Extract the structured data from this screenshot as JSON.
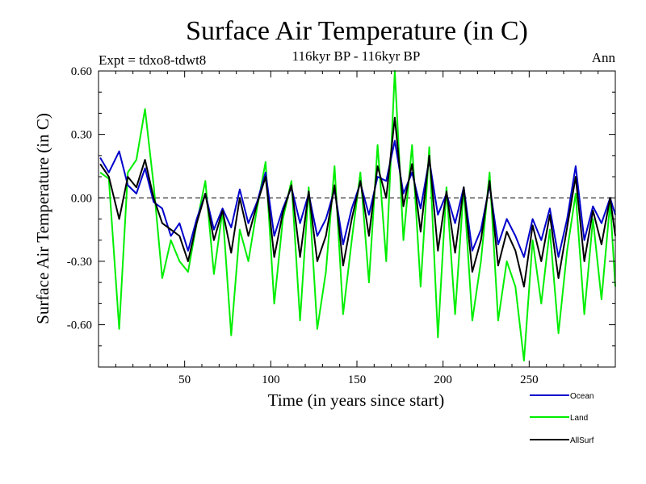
{
  "chart_data": {
    "type": "line",
    "title": "Surface Air Temperature (in C)",
    "subtitle": "116kyr BP - 116kyr BP",
    "experiment": "Expt = tdxo8-tdwt8",
    "season": "Ann",
    "xlabel": "Time (in years since start)",
    "ylabel": "Surface Air Temperature (in C)",
    "xlim": [
      0,
      300
    ],
    "ylim": [
      -0.8,
      0.6
    ],
    "x_ticks": [
      50,
      100,
      150,
      200,
      250
    ],
    "x_tick_labels": [
      "50",
      "100",
      "150",
      "200",
      "250"
    ],
    "y_ticks": [
      0.6,
      0.3,
      0.0,
      -0.3,
      -0.6
    ],
    "y_tick_labels": [
      "0.60",
      "0.30",
      "0.00",
      "-0.30",
      "-0.60"
    ],
    "zero_line": true,
    "x": [
      1,
      6,
      12,
      17,
      22,
      27,
      32,
      37,
      42,
      47,
      52,
      57,
      62,
      67,
      72,
      77,
      82,
      87,
      92,
      97,
      102,
      107,
      112,
      117,
      122,
      127,
      132,
      137,
      142,
      147,
      152,
      157,
      162,
      167,
      172,
      177,
      182,
      187,
      192,
      197,
      202,
      207,
      212,
      217,
      222,
      227,
      232,
      237,
      242,
      247,
      252,
      257,
      262,
      267,
      272,
      277,
      282,
      287,
      292,
      297,
      300
    ],
    "series": [
      {
        "name": "Ocean",
        "color": "#0000cc",
        "values": [
          0.19,
          0.12,
          0.22,
          0.06,
          0.02,
          0.14,
          -0.02,
          -0.05,
          -0.18,
          -0.12,
          -0.25,
          -0.1,
          0.02,
          -0.15,
          -0.05,
          -0.14,
          0.04,
          -0.12,
          -0.02,
          0.12,
          -0.18,
          -0.05,
          0.05,
          -0.12,
          0.02,
          -0.18,
          -0.1,
          0.04,
          -0.22,
          -0.05,
          0.07,
          -0.08,
          0.1,
          0.08,
          0.27,
          0.02,
          0.12,
          -0.05,
          0.18,
          -0.08,
          0.02,
          -0.12,
          0.05,
          -0.25,
          -0.15,
          0.06,
          -0.22,
          -0.1,
          -0.18,
          -0.28,
          -0.1,
          -0.2,
          -0.05,
          -0.28,
          -0.1,
          0.15,
          -0.2,
          -0.04,
          -0.12,
          0.0,
          -0.08
        ]
      },
      {
        "name": "Land",
        "color": "#00ee00",
        "values": [
          0.12,
          0.09,
          -0.62,
          0.12,
          0.18,
          0.42,
          0.06,
          -0.38,
          -0.2,
          -0.3,
          -0.35,
          -0.12,
          0.08,
          -0.36,
          -0.06,
          -0.65,
          -0.15,
          -0.3,
          -0.05,
          0.17,
          -0.5,
          -0.1,
          0.08,
          -0.58,
          0.05,
          -0.62,
          -0.35,
          0.15,
          -0.55,
          -0.2,
          0.12,
          -0.4,
          0.25,
          -0.3,
          0.6,
          -0.2,
          0.25,
          -0.42,
          0.24,
          -0.66,
          0.05,
          -0.55,
          0.05,
          -0.58,
          -0.3,
          0.12,
          -0.58,
          -0.3,
          -0.42,
          -0.77,
          -0.2,
          -0.5,
          -0.15,
          -0.64,
          -0.25,
          0.02,
          -0.55,
          -0.1,
          -0.48,
          -0.02,
          -0.42
        ]
      },
      {
        "name": "AllSurf",
        "color": "#000000",
        "values": [
          0.16,
          0.1,
          -0.1,
          0.1,
          0.05,
          0.18,
          0.0,
          -0.12,
          -0.15,
          -0.18,
          -0.3,
          -0.12,
          0.02,
          -0.2,
          -0.06,
          -0.26,
          0.0,
          -0.18,
          -0.03,
          0.1,
          -0.28,
          -0.07,
          0.06,
          -0.28,
          0.03,
          -0.3,
          -0.18,
          0.06,
          -0.32,
          -0.1,
          0.08,
          -0.18,
          0.15,
          0.0,
          0.38,
          -0.04,
          0.16,
          -0.16,
          0.2,
          -0.25,
          0.03,
          -0.26,
          0.05,
          -0.35,
          -0.2,
          0.08,
          -0.32,
          -0.16,
          -0.25,
          -0.42,
          -0.13,
          -0.3,
          -0.08,
          -0.38,
          -0.14,
          0.1,
          -0.3,
          -0.06,
          -0.22,
          0.0,
          -0.18
        ]
      }
    ]
  }
}
